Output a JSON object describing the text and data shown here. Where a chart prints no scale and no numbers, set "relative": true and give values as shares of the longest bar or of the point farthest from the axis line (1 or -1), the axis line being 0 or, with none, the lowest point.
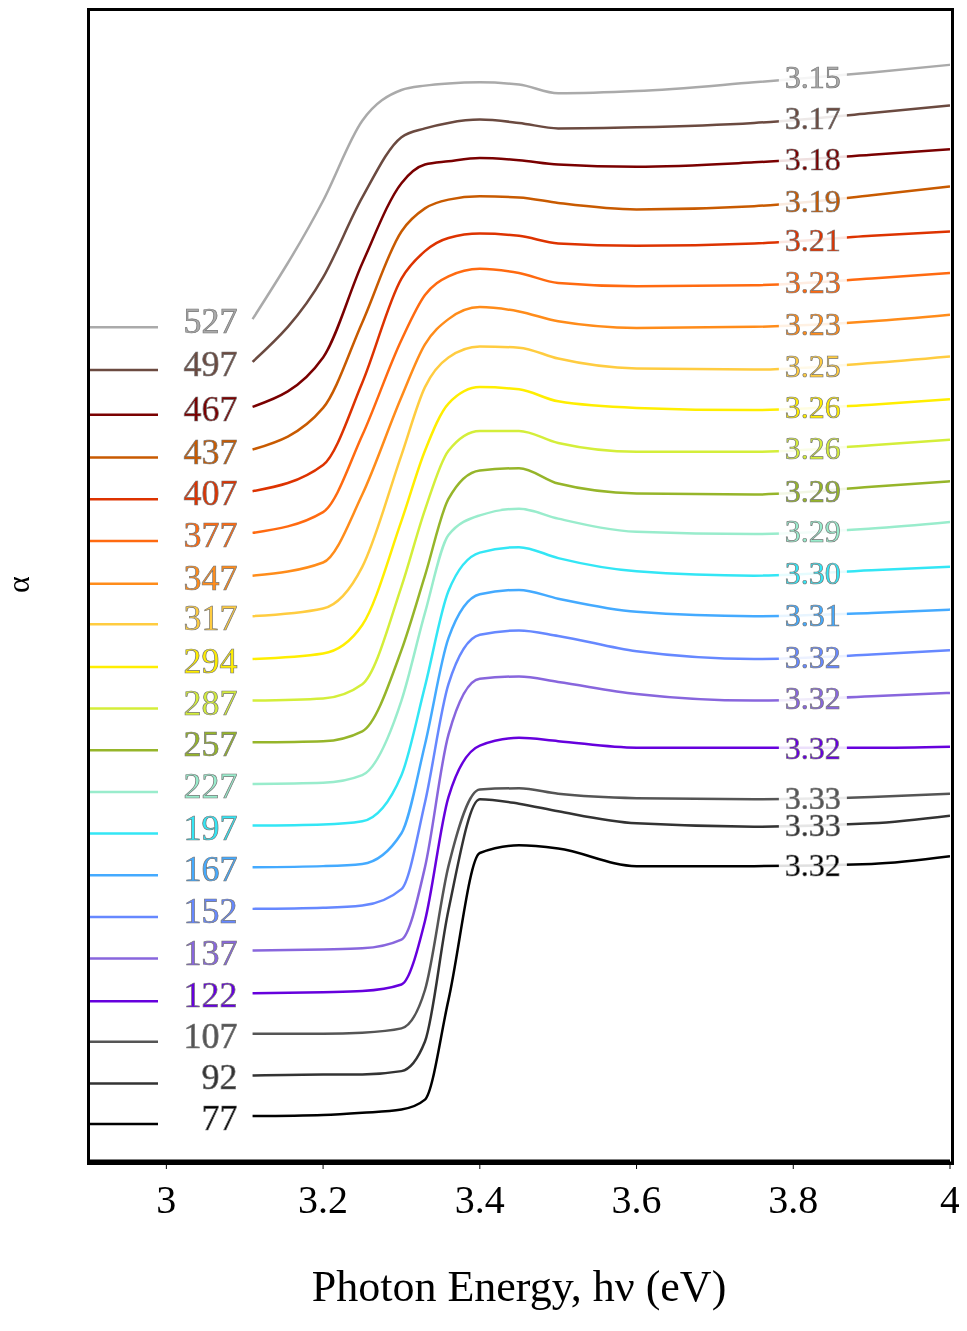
{
  "chart_data": {
    "type": "line",
    "relative": true,
    "xlabel": "Photon Energy, hν (eV)",
    "ylabel": "α",
    "xlim": [
      2.9,
      4
    ],
    "xticks": [
      3,
      3.2,
      3.4,
      3.6,
      3.8,
      4
    ],
    "grid": false,
    "legend": "left",
    "marker": "none",
    "line_style": "solid",
    "x": [
      3.11,
      3.2,
      3.25,
      3.3,
      3.33,
      3.36,
      3.4,
      3.45,
      3.5,
      3.6,
      3.75,
      3.9,
      4.0
    ],
    "series": [
      {
        "name": "527",
        "color": "#aaaaaa",
        "values": [
          0.768,
          0.876,
          0.949,
          0.977,
          0.981,
          0.983,
          0.984,
          0.982,
          0.974,
          0.976,
          0.984,
          0.993,
          1.0
        ]
      },
      {
        "name": "497",
        "color": "#6b4a40",
        "values": [
          0.729,
          0.806,
          0.879,
          0.934,
          0.942,
          0.947,
          0.95,
          0.947,
          0.942,
          0.943,
          0.947,
          0.956,
          0.963
        ]
      },
      {
        "name": "467",
        "color": "#7a0000",
        "values": [
          0.688,
          0.733,
          0.819,
          0.892,
          0.909,
          0.912,
          0.915,
          0.913,
          0.909,
          0.907,
          0.911,
          0.918,
          0.923
        ]
      },
      {
        "name": "437",
        "color": "#c85a00",
        "values": [
          0.649,
          0.687,
          0.765,
          0.848,
          0.869,
          0.877,
          0.88,
          0.879,
          0.874,
          0.868,
          0.871,
          0.881,
          0.889
        ]
      },
      {
        "name": "407",
        "color": "#dd3300",
        "values": [
          0.611,
          0.635,
          0.71,
          0.805,
          0.83,
          0.842,
          0.846,
          0.844,
          0.837,
          0.835,
          0.837,
          0.844,
          0.848
        ]
      },
      {
        "name": "377",
        "color": "#ff6a10",
        "values": [
          0.573,
          0.592,
          0.662,
          0.749,
          0.79,
          0.807,
          0.814,
          0.81,
          0.801,
          0.798,
          0.799,
          0.805,
          0.81
        ]
      },
      {
        "name": "347",
        "color": "#ff8c1a",
        "values": [
          0.534,
          0.546,
          0.608,
          0.697,
          0.745,
          0.768,
          0.779,
          0.775,
          0.766,
          0.76,
          0.761,
          0.766,
          0.772
        ]
      },
      {
        "name": "317",
        "color": "#ffcc40",
        "values": [
          0.497,
          0.504,
          0.542,
          0.644,
          0.706,
          0.733,
          0.743,
          0.742,
          0.732,
          0.723,
          0.722,
          0.728,
          0.734
        ]
      },
      {
        "name": "294",
        "color": "#ffee00",
        "values": [
          0.458,
          0.463,
          0.489,
          0.584,
          0.648,
          0.691,
          0.706,
          0.704,
          0.693,
          0.687,
          0.685,
          0.69,
          0.695
        ]
      },
      {
        "name": "287",
        "color": "#d4ee3a",
        "values": [
          0.42,
          0.422,
          0.435,
          0.524,
          0.594,
          0.648,
          0.666,
          0.666,
          0.655,
          0.647,
          0.647,
          0.653,
          0.658
        ]
      },
      {
        "name": "257",
        "color": "#96b52a",
        "values": [
          0.382,
          0.383,
          0.392,
          0.466,
          0.534,
          0.604,
          0.63,
          0.632,
          0.618,
          0.609,
          0.608,
          0.615,
          0.62
        ]
      },
      {
        "name": "227",
        "color": "#99eccc",
        "values": [
          0.344,
          0.345,
          0.352,
          0.42,
          0.5,
          0.571,
          0.589,
          0.595,
          0.586,
          0.574,
          0.572,
          0.577,
          0.583
        ]
      },
      {
        "name": "197",
        "color": "#33e6f5",
        "values": [
          0.306,
          0.307,
          0.31,
          0.352,
          0.433,
          0.52,
          0.555,
          0.56,
          0.55,
          0.538,
          0.534,
          0.539,
          0.542
        ]
      },
      {
        "name": "167",
        "color": "#44aaff",
        "values": [
          0.268,
          0.269,
          0.271,
          0.299,
          0.38,
          0.477,
          0.517,
          0.521,
          0.513,
          0.501,
          0.497,
          0.5,
          0.503
        ]
      },
      {
        "name": "152",
        "color": "#6688ff",
        "values": [
          0.23,
          0.231,
          0.233,
          0.248,
          0.327,
          0.435,
          0.48,
          0.484,
          0.479,
          0.465,
          0.458,
          0.462,
          0.466
        ]
      },
      {
        "name": "137",
        "color": "#8866dd",
        "values": [
          0.192,
          0.193,
          0.194,
          0.202,
          0.268,
          0.389,
          0.44,
          0.442,
          0.437,
          0.426,
          0.42,
          0.424,
          0.427
        ]
      },
      {
        "name": "122",
        "color": "#6600dd",
        "values": [
          0.153,
          0.154,
          0.155,
          0.161,
          0.219,
          0.332,
          0.379,
          0.386,
          0.383,
          0.377,
          0.377,
          0.377,
          0.378
        ]
      },
      {
        "name": "107",
        "color": "#555555",
        "values": [
          0.116,
          0.116,
          0.117,
          0.121,
          0.156,
          0.269,
          0.339,
          0.34,
          0.335,
          0.331,
          0.33,
          0.332,
          0.335
        ]
      },
      {
        "name": "92",
        "color": "#333333",
        "values": [
          0.078,
          0.079,
          0.079,
          0.082,
          0.109,
          0.229,
          0.33,
          0.326,
          0.319,
          0.308,
          0.305,
          0.308,
          0.315
        ]
      },
      {
        "name": "77",
        "color": "#000000",
        "values": [
          0.041,
          0.042,
          0.044,
          0.047,
          0.056,
          0.147,
          0.281,
          0.288,
          0.285,
          0.269,
          0.269,
          0.271,
          0.278
        ]
      }
    ],
    "annotations": [
      "3.15",
      "3.17",
      "3.18",
      "3.19",
      "3.21",
      "3.23",
      "3.23",
      "3.25",
      "3.26",
      "3.26",
      "3.29",
      "3.29",
      "3.30",
      "3.31",
      "3.32",
      "3.32",
      "3.32",
      "3.33",
      "3.33",
      "3.32"
    ]
  }
}
